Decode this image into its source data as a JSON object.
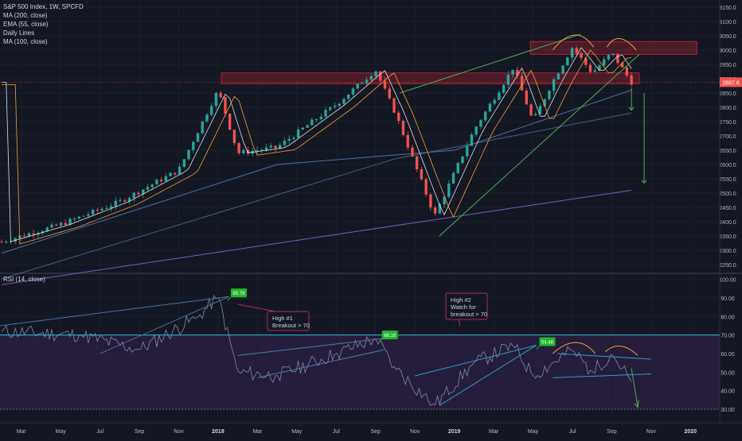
{
  "legend": {
    "symbol": "S&P 500 Index, 1W, SPCFD",
    "items": [
      "MA (200, close)",
      "EMA (55, close)",
      "Daily Lines",
      "MA (100, close)"
    ]
  },
  "price_scale": {
    "ticks": [
      3150,
      3100,
      3050,
      3000,
      2950,
      2900,
      2850,
      2800,
      2750,
      2700,
      2650,
      2600,
      2550,
      2500,
      2450,
      2400,
      2350,
      2300,
      2250
    ],
    "tick_labels": [
      "3150.0",
      "3100.0",
      "3050.0",
      "3000.0",
      "2950.0",
      "2900.0",
      "2850.0",
      "2800.0",
      "2750.0",
      "2700.0",
      "2650.0",
      "2600.0",
      "2550.0",
      "2500.0",
      "2450.0",
      "2400.0",
      "2350.0",
      "2300.0",
      "2250.0"
    ],
    "current_price_label": "2887.6"
  },
  "rsi_panel": {
    "title": "RSI (14, close)",
    "ticks": [
      100,
      90,
      80,
      70,
      60,
      50,
      40,
      30
    ],
    "tick_labels": [
      "100.00",
      "90.00",
      "80.00",
      "70.00",
      "60.00",
      "50.00",
      "40.00",
      "30.00"
    ],
    "annotations": {
      "high1_lines": [
        "High #1",
        "Breakout > 70"
      ],
      "high2_lines": [
        "High #2",
        "Watch for",
        "breakout > 70"
      ]
    },
    "peak_labels": [
      "90.79",
      "68.16",
      "64.48"
    ]
  },
  "time_axis": {
    "labels": [
      "Mar",
      "May",
      "Jul",
      "Sep",
      "Nov",
      "2018",
      "Mar",
      "May",
      "Jul",
      "Sep",
      "Nov",
      "2019",
      "Mar",
      "May",
      "Jul",
      "Sep",
      "Nov",
      "2020"
    ]
  },
  "colors": {
    "background": "#131722",
    "up": "#26a69a",
    "down": "#ef5350",
    "ma200": "#7e57c2",
    "ema55": "#4a6fa5",
    "ma100": "#3e5f86",
    "fast_white": "#e0e0e0",
    "fast_orange": "#f39c3d",
    "trendline": "#4caf50",
    "rsi_line": "#7e8aa6",
    "rsi_band": "#2a1e3f",
    "rsi_level": "#26c6da"
  },
  "chart_data": [
    {
      "type": "candlestick",
      "title": "S&P 500 Index, 1W, SPCFD",
      "ylim": [
        2225,
        3175
      ],
      "x_start": "2017-02",
      "x_end": "2020-02",
      "current_price": 2887.6,
      "series": [
        {
          "name": "S&P 500 weekly close",
          "x": [
            "2017-02",
            "2017-05",
            "2017-08",
            "2017-11",
            "2018-01",
            "2018-02",
            "2018-04",
            "2018-07",
            "2018-09",
            "2018-10",
            "2018-12",
            "2019-02",
            "2019-04",
            "2019-05",
            "2019-06",
            "2019-07",
            "2019-08",
            "2019-09",
            "2019-10"
          ],
          "values": [
            2330,
            2390,
            2470,
            2580,
            2860,
            2640,
            2660,
            2810,
            2930,
            2780,
            2420,
            2720,
            2940,
            2750,
            2890,
            3010,
            2920,
            2990,
            2887.6
          ]
        },
        {
          "name": "MA (200, close)",
          "x": [
            "2017-02",
            "2019-10"
          ],
          "values": [
            2180,
            2510
          ]
        },
        {
          "name": "EMA (55, close)",
          "x": [
            "2017-02",
            "2018-04",
            "2019-01",
            "2019-10"
          ],
          "values": [
            2290,
            2600,
            2650,
            2860
          ]
        },
        {
          "name": "MA (100, close)",
          "x": [
            "2017-02",
            "2018-10",
            "2019-10"
          ],
          "values": [
            2200,
            2620,
            2780
          ]
        }
      ],
      "zones": [
        {
          "from": 2882,
          "to": 2920
        },
        {
          "from": 2985,
          "to": 3030
        }
      ]
    },
    {
      "type": "line",
      "title": "RSI (14, close)",
      "ylim": [
        27,
        102
      ],
      "levels": [
        70,
        30
      ],
      "series": [
        {
          "name": "RSI (14, close)",
          "x": [
            "2017-02",
            "2017-06",
            "2017-09",
            "2017-12",
            "2018-01",
            "2018-02",
            "2018-04",
            "2018-07",
            "2018-09",
            "2018-10",
            "2018-12",
            "2019-02",
            "2019-04",
            "2019-05",
            "2019-07",
            "2019-08",
            "2019-09",
            "2019-10"
          ],
          "values": [
            72,
            70,
            62,
            80,
            90.79,
            50,
            48,
            60,
            68.16,
            52,
            32,
            55,
            64.48,
            48,
            62,
            50,
            60,
            45
          ]
        }
      ],
      "peaks": [
        90.79,
        68.16,
        64.48
      ]
    }
  ]
}
